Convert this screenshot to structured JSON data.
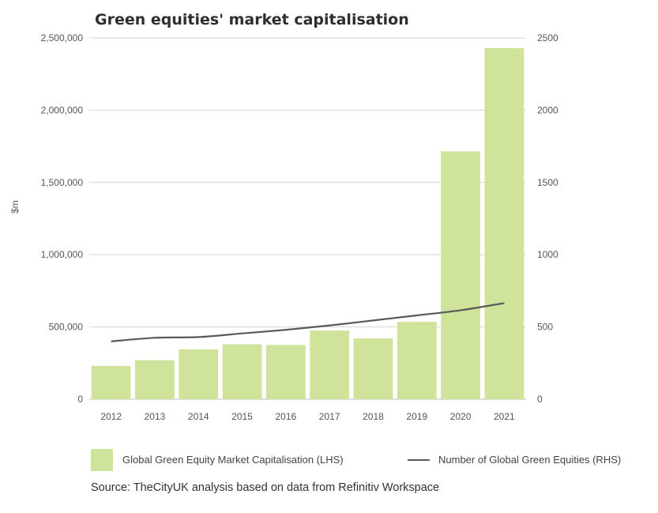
{
  "chart_data": {
    "type": "bar",
    "title": "Green equities' market capitalisation",
    "ylabel": "$m",
    "categories": [
      "2012",
      "2013",
      "2014",
      "2015",
      "2016",
      "2017",
      "2018",
      "2019",
      "2020",
      "2021"
    ],
    "series": [
      {
        "name": "Global Green Equity Market Capitalisation (LHS)",
        "type": "bar",
        "axis": "left",
        "color": "#cfe39b",
        "values": [
          230000,
          270000,
          345000,
          380000,
          375000,
          475000,
          420000,
          535000,
          1715000,
          2430000
        ]
      },
      {
        "name": "Number of Global Green Equities (RHS)",
        "type": "line",
        "axis": "right",
        "color": "#5a5a5a",
        "values": [
          400,
          425,
          430,
          455,
          480,
          510,
          545,
          580,
          615,
          665
        ]
      }
    ],
    "y_left": {
      "range": [
        0,
        2500000
      ],
      "ticks": [
        0,
        500000,
        1000000,
        1500000,
        2000000,
        2500000
      ],
      "tick_labels": [
        "0",
        "500,000",
        "1,000,000",
        "1,500,000",
        "2,000,000",
        "2,500,000"
      ]
    },
    "y_right": {
      "range": [
        0,
        2500
      ],
      "ticks": [
        0,
        500,
        1000,
        1500,
        2000,
        2500
      ],
      "tick_labels": [
        "0",
        "500",
        "1000",
        "1500",
        "2000",
        "2500"
      ]
    },
    "grid": true,
    "legend_position": "bottom"
  },
  "source": "Source: TheCityUK analysis based on data from Refinitiv Workspace"
}
